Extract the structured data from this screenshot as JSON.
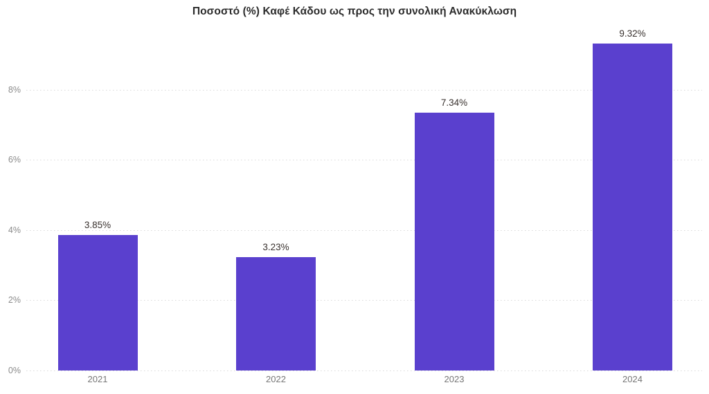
{
  "chart_data": {
    "type": "bar",
    "title": "Ποσοστό (%) Καφέ Κάδου ως προς την συνολική Ανακύκλωση",
    "categories": [
      "2021",
      "2022",
      "2023",
      "2024"
    ],
    "values": [
      3.85,
      3.23,
      7.34,
      9.32
    ],
    "value_labels": [
      "3.85%",
      "3.23%",
      "7.34%",
      "9.32%"
    ],
    "y_ticks": [
      {
        "label": "0%",
        "value": 0
      },
      {
        "label": "2%",
        "value": 2
      },
      {
        "label": "4%",
        "value": 4
      },
      {
        "label": "6%",
        "value": 6
      },
      {
        "label": "8%",
        "value": 8
      }
    ],
    "ylim": [
      0,
      9.47
    ],
    "xlabel": "",
    "ylabel": "",
    "legend": "none",
    "grid": "horizontal-dotted",
    "colors": {
      "bar": "#5a40ce",
      "title_text": "#2b2b2b",
      "value_label_text": "#38312e",
      "axis_tick_text": "#8a8a8a",
      "gridline": "#d9d9d9",
      "background": "#ffffff"
    }
  }
}
